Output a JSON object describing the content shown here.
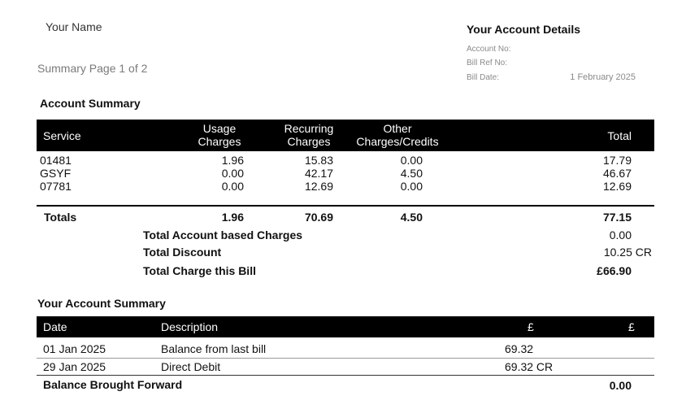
{
  "header": {
    "your_name": "Your Name",
    "summary_page": "Summary Page 1 of 2",
    "details_title": "Your Account Details",
    "account_no_label": "Account No:",
    "bill_ref_label": "Bill Ref No:",
    "bill_date_label": "Bill Date:",
    "bill_date_value": "1 February 2025"
  },
  "account_summary": {
    "title": "Account Summary",
    "columns": {
      "service": "Service",
      "usage_1": "Usage",
      "usage_2": "Charges",
      "recurring_1": "Recurring",
      "recurring_2": "Charges",
      "other_1": "Other",
      "other_2": "Charges/Credits",
      "total": "Total"
    },
    "rows": [
      {
        "service": "01481",
        "usage": "1.96",
        "recurring": "15.83",
        "other": "0.00",
        "total": "17.79"
      },
      {
        "service": "GSYF",
        "usage": "0.00",
        "recurring": "42.17",
        "other": "4.50",
        "total": "46.67"
      },
      {
        "service": "07781",
        "usage": "0.00",
        "recurring": "12.69",
        "other": "0.00",
        "total": "12.69"
      }
    ],
    "totals": {
      "label": "Totals",
      "usage": "1.96",
      "recurring": "70.69",
      "other": "4.50",
      "total": "77.15"
    },
    "account_based_label": "Total Account based Charges",
    "account_based_value": "0.00",
    "discount_label": "Total Discount",
    "discount_value": "10.25 CR",
    "charge_label": "Total Charge this Bill",
    "charge_value": "£66.90"
  },
  "your_account_summary": {
    "title": "Your Account Summary",
    "columns": {
      "date": "Date",
      "description": "Description",
      "amount": "£",
      "balance": "£"
    },
    "rows": [
      {
        "date": "01 Jan 2025",
        "description": "Balance from last bill",
        "amount": "69.32"
      },
      {
        "date": "29 Jan 2025",
        "description": "Direct Debit",
        "amount": "69.32 CR"
      }
    ],
    "brought_forward_label": "Balance Brought Forward",
    "brought_forward_value": "0.00"
  }
}
